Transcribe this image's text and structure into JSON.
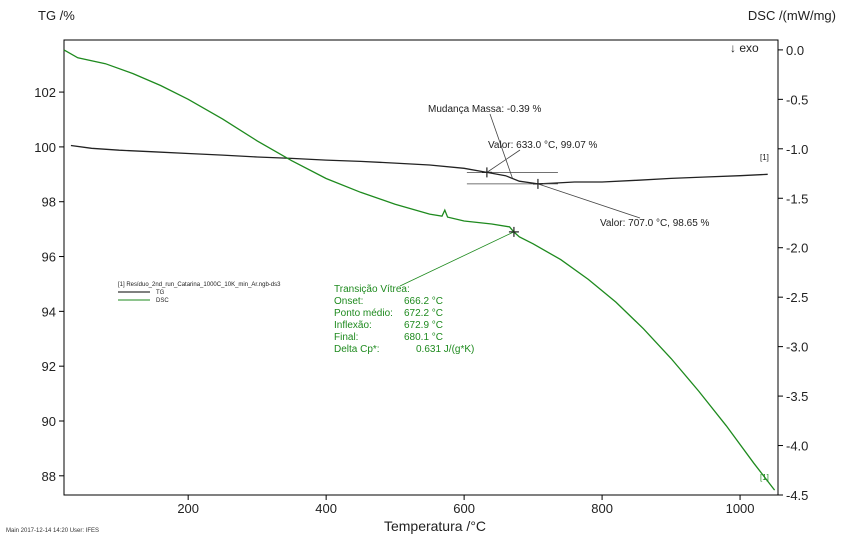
{
  "chart_data": {
    "type": "line",
    "left_axis_label": "TG /%",
    "right_axis_label": "DSC /(mW/mg)",
    "exo_label": "↓ exo",
    "xlabel": "Temperatura /°C",
    "xlim": [
      20,
      1055
    ],
    "ylim_left": [
      87.3,
      103.9
    ],
    "ylim_right": [
      -4.5,
      0.1
    ],
    "x_ticks": [
      200,
      400,
      600,
      800,
      1000
    ],
    "y_left_ticks": [
      88,
      90,
      92,
      94,
      96,
      98,
      100,
      102
    ],
    "y_right_ticks": [
      0.0,
      -0.5,
      -1.0,
      -1.5,
      -2.0,
      -2.5,
      -3.0,
      -3.5,
      -4.0,
      -4.5
    ],
    "y_right_tick_labels": [
      "0.0",
      "-0.5",
      "-1.0",
      "-1.5",
      "-2.0",
      "-2.5",
      "-3.0",
      "-3.5",
      "-4.0",
      "-4.5"
    ],
    "legend": {
      "title": "[1] Resíduo_2nd_run_Catarina_1000C_10K_min_Ar.ngb-ds3",
      "entries": [
        {
          "name": "TG",
          "color": "#000000"
        },
        {
          "name": "DSC",
          "color": "#1e8a1e"
        }
      ]
    },
    "series": [
      {
        "name": "TG",
        "axis": "left",
        "color": "#222222",
        "x": [
          30,
          60,
          100,
          150,
          200,
          250,
          300,
          350,
          400,
          450,
          500,
          550,
          600,
          633,
          660,
          680,
          700,
          707,
          730,
          760,
          800,
          850,
          900,
          950,
          1000,
          1040
        ],
        "y": [
          100.05,
          99.95,
          99.88,
          99.82,
          99.76,
          99.7,
          99.63,
          99.58,
          99.52,
          99.47,
          99.41,
          99.34,
          99.22,
          99.07,
          98.95,
          98.75,
          98.68,
          98.65,
          98.68,
          98.72,
          98.72,
          98.78,
          98.85,
          98.9,
          98.95,
          99.0
        ]
      },
      {
        "name": "DSC",
        "axis": "right",
        "color": "#1e8a1e",
        "x": [
          20,
          40,
          80,
          120,
          160,
          200,
          250,
          300,
          350,
          400,
          450,
          500,
          550,
          568,
          572,
          576,
          600,
          640,
          666,
          672,
          680,
          700,
          740,
          780,
          820,
          860,
          900,
          940,
          980,
          1020,
          1050
        ],
        "y": [
          0.0,
          -0.08,
          -0.14,
          -0.24,
          -0.36,
          -0.5,
          -0.7,
          -0.92,
          -1.12,
          -1.3,
          -1.44,
          -1.56,
          -1.66,
          -1.68,
          -1.62,
          -1.69,
          -1.73,
          -1.76,
          -1.79,
          -1.84,
          -1.89,
          -1.96,
          -2.12,
          -2.32,
          -2.55,
          -2.82,
          -3.12,
          -3.45,
          -3.8,
          -4.18,
          -4.45
        ]
      }
    ],
    "annotations": {
      "mass_change": "Mudança Massa: -0.39 %",
      "valor1": "Valor: 633.0 °C, 99.07 %",
      "valor2": "Valor: 707.0 °C, 98.65 %",
      "transicao": {
        "title": "Transição Vítrea:",
        "rows": [
          {
            "label": "Onset:",
            "value": "666.2 °C"
          },
          {
            "label": "Ponto médio:",
            "value": "672.2 °C"
          },
          {
            "label": "Inflexão:",
            "value": "672.9 °C"
          },
          {
            "label": "Final:",
            "value": "680.1 °C"
          },
          {
            "label": "Delta Cp*:",
            "value": "0.631 J/(g*K)"
          }
        ]
      },
      "curve_marker": "[1]"
    },
    "grid": false,
    "legend_position": "left-middle"
  },
  "footer": "Main   2017-12-14 14:20   User: IFES"
}
